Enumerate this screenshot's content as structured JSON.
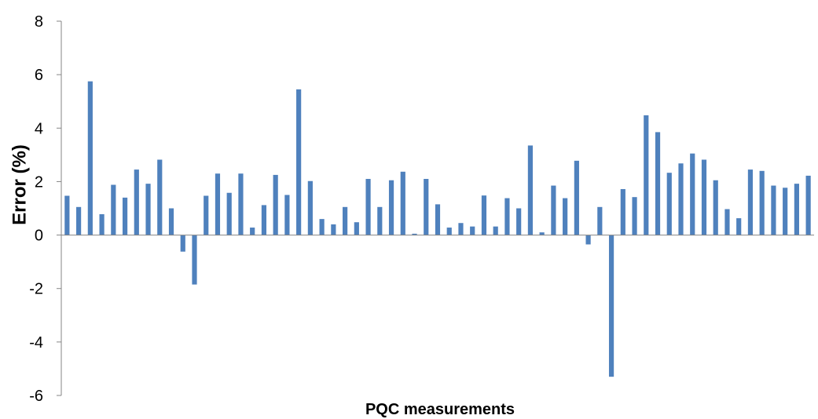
{
  "chart_data": {
    "type": "bar",
    "title": "",
    "xlabel": "PQC measurements",
    "ylabel": "Error (%)",
    "ylim": [
      -6,
      8
    ],
    "yticks": [
      "-6",
      "-4",
      "-2",
      "0",
      "2",
      "4",
      "6",
      "8"
    ],
    "grid": false,
    "legend": "none",
    "bar_color": "#4F81BD",
    "values": [
      1.47,
      1.05,
      5.75,
      0.78,
      1.88,
      1.4,
      2.45,
      1.92,
      2.82,
      1.0,
      -0.62,
      -1.85,
      1.47,
      2.3,
      1.58,
      2.3,
      0.28,
      1.12,
      2.25,
      1.5,
      5.45,
      2.02,
      0.6,
      0.4,
      1.05,
      0.48,
      2.1,
      1.05,
      2.05,
      2.37,
      0.05,
      2.1,
      1.15,
      0.28,
      0.45,
      0.32,
      1.48,
      0.32,
      1.38,
      1.0,
      3.35,
      0.1,
      1.85,
      1.38,
      2.78,
      -0.35,
      1.05,
      -5.3,
      1.72,
      1.42,
      4.48,
      3.85,
      2.33,
      2.68,
      3.05,
      2.82,
      2.05,
      0.97,
      0.63,
      2.45,
      2.4,
      1.85,
      1.77,
      1.92,
      2.22
    ]
  }
}
